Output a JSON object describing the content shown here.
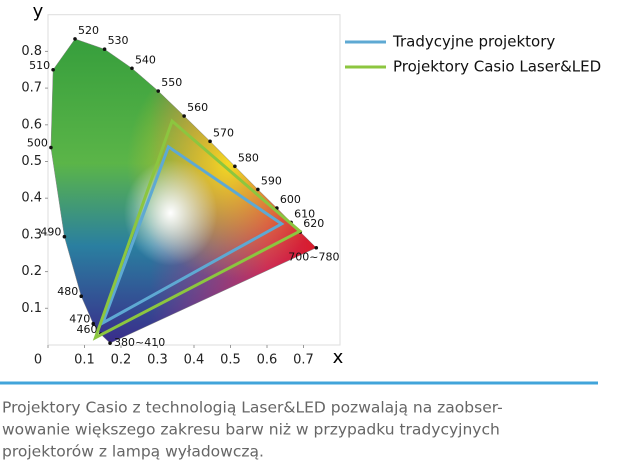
{
  "chart_data": {
    "type": "line",
    "closed": true,
    "xlabel": "x",
    "ylabel": "y",
    "xlim": [
      0,
      0.8
    ],
    "ylim": [
      0,
      0.9
    ],
    "xticks": [
      0,
      0.1,
      0.2,
      0.3,
      0.4,
      0.5,
      0.6,
      0.7
    ],
    "yticks": [
      0.1,
      0.2,
      0.3,
      0.4,
      0.5,
      0.6,
      0.7,
      0.8
    ],
    "locus_points": [
      {
        "label": "380~410",
        "x": 0.17,
        "y": 0.005
      },
      {
        "label": "460",
        "x": 0.144,
        "y": 0.03
      },
      {
        "label": "470",
        "x": 0.124,
        "y": 0.058
      },
      {
        "label": "480",
        "x": 0.091,
        "y": 0.133
      },
      {
        "label": "490",
        "x": 0.045,
        "y": 0.295
      },
      {
        "label": "500",
        "x": 0.008,
        "y": 0.538
      },
      {
        "label": "510",
        "x": 0.014,
        "y": 0.75
      },
      {
        "label": "520",
        "x": 0.074,
        "y": 0.834
      },
      {
        "label": "530",
        "x": 0.155,
        "y": 0.806
      },
      {
        "label": "540",
        "x": 0.23,
        "y": 0.754
      },
      {
        "label": "550",
        "x": 0.302,
        "y": 0.692
      },
      {
        "label": "560",
        "x": 0.373,
        "y": 0.624
      },
      {
        "label": "570",
        "x": 0.444,
        "y": 0.555
      },
      {
        "label": "580",
        "x": 0.512,
        "y": 0.487
      },
      {
        "label": "590",
        "x": 0.575,
        "y": 0.424
      },
      {
        "label": "600",
        "x": 0.627,
        "y": 0.373
      },
      {
        "label": "610",
        "x": 0.666,
        "y": 0.334
      },
      {
        "label": "620",
        "x": 0.691,
        "y": 0.308
      },
      {
        "label": "700~780",
        "x": 0.735,
        "y": 0.265
      }
    ],
    "series": [
      {
        "name": "Tradycyjne projektory",
        "color": "#5ea9d3",
        "x": [
          0.33,
          0.64,
          0.15
        ],
        "values": [
          0.54,
          0.33,
          0.06
        ]
      },
      {
        "name": "Projektory Casio Laser&LED",
        "color": "#8cc63f",
        "x": [
          0.34,
          0.69,
          0.13
        ],
        "values": [
          0.61,
          0.31,
          0.02
        ]
      }
    ]
  },
  "caption": [
    "Projektory Casio z technologią Laser&LED pozwalają na zaobser-",
    "wowanie większego zakresu barw niż w przypadku tradycyjnych",
    "projektorów z lampą wyładowczą."
  ]
}
